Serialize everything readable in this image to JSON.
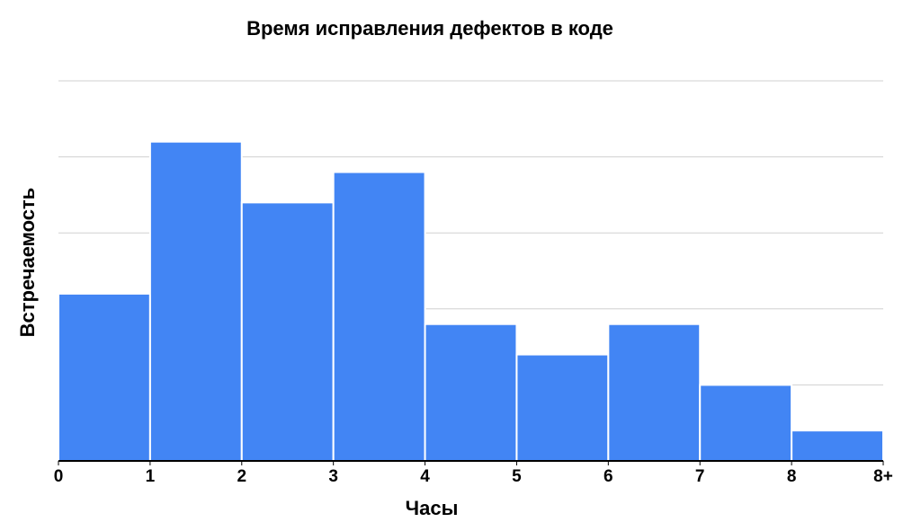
{
  "chart_data": {
    "type": "histogram",
    "title": "Время исправления дефектов в коде",
    "x_label": "Часы",
    "y_label": "Встречаемость",
    "bins": [
      0,
      1,
      2,
      3,
      4,
      5,
      6,
      7,
      8,
      9
    ],
    "values": [
      2.2,
      4.2,
      3.4,
      3.8,
      1.8,
      1.4,
      1.8,
      1.0,
      0.4
    ],
    "color": "#4285f4",
    "xlim": [
      0,
      9
    ],
    "xticks": [
      0,
      1,
      2,
      3,
      4,
      5,
      6,
      7,
      8,
      {
        "value": 9,
        "label": "8+"
      }
    ],
    "ylim": [
      0,
      5
    ],
    "yticks": [
      0,
      1,
      2,
      3,
      4,
      5
    ],
    "grid": true
  }
}
